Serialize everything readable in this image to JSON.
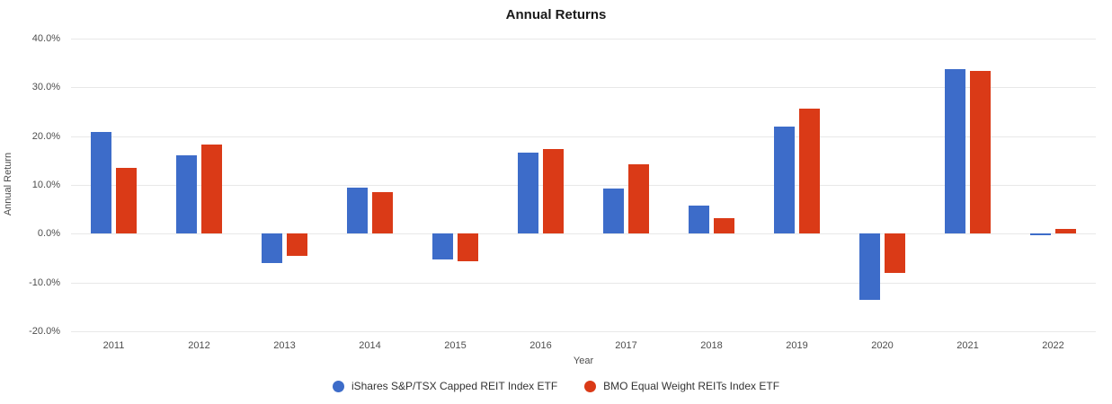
{
  "chart_data": {
    "type": "bar",
    "title": "Annual Returns",
    "xlabel": "Year",
    "ylabel": "Annual Return",
    "categories": [
      "2011",
      "2012",
      "2013",
      "2014",
      "2015",
      "2016",
      "2017",
      "2018",
      "2019",
      "2020",
      "2021",
      "2022"
    ],
    "series": [
      {
        "name": "iShares S&P/TSX Capped REIT Index ETF",
        "color": "#3d6cc9",
        "values": [
          20.8,
          16.0,
          -6.0,
          9.5,
          -5.2,
          16.7,
          9.3,
          5.7,
          22.0,
          -13.5,
          33.7,
          -0.3
        ]
      },
      {
        "name": "BMO Equal Weight REITs Index ETF",
        "color": "#da3a17",
        "values": [
          13.5,
          18.2,
          -4.5,
          8.6,
          -5.6,
          17.4,
          14.3,
          3.2,
          25.7,
          -8.0,
          33.4,
          1.0
        ]
      }
    ],
    "ylim": [
      -20,
      40
    ],
    "ytick_step": 10,
    "ytick_labels": [
      "40.0%",
      "30.0%",
      "20.0%",
      "10.0%",
      "0.0%",
      "-10.0%",
      "-20.0%"
    ],
    "grid": true,
    "legend_position": "bottom"
  }
}
